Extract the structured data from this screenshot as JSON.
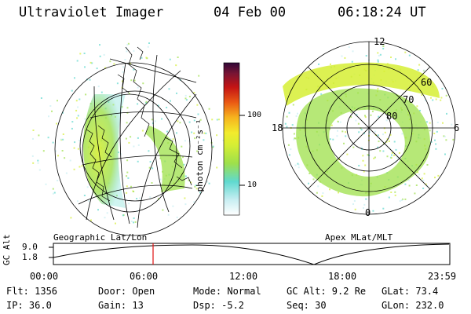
{
  "header": {
    "instrument": "Ultraviolet Imager",
    "date": "04 Feb 00",
    "time": "06:18:24 UT"
  },
  "colorbar": {
    "unit_label": "photon cm⁻²s⁻¹",
    "ticks": [
      "100",
      "10"
    ],
    "gradient": [
      "#ffffff",
      "#c8eef2",
      "#5fd9cf",
      "#9ee04a",
      "#d6ee34",
      "#f2ec2c",
      "#f6b41e",
      "#ea5a14",
      "#c41414",
      "#781434",
      "#300838"
    ]
  },
  "left_panel": {
    "caption": "Geographic Lat/Lon"
  },
  "right_panel": {
    "caption": "Apex MLat/MLT",
    "mlt_labels": {
      "top": "12",
      "bottom": "0",
      "left": "18",
      "right": "6"
    },
    "lat_labels": [
      "60",
      "70",
      "80"
    ]
  },
  "timeline": {
    "axis_title": "GC Alt",
    "y_ticks": [
      "9.0",
      "1.8"
    ],
    "x_ticks": [
      "00:00",
      "06:00",
      "12:00",
      "18:00",
      "23:59"
    ],
    "current_time_marker_color": "#e01010"
  },
  "info": {
    "row1": [
      "Flt: 1356",
      "Door: Open",
      "Mode: Normal",
      "GC Alt: 9.2 Re",
      "GLat: 73.4"
    ],
    "row2": [
      "IP: 36.0",
      "Gain: 13",
      "Dsp:   -5.2",
      "Seq: 30",
      "GLon: 232.0"
    ]
  }
}
